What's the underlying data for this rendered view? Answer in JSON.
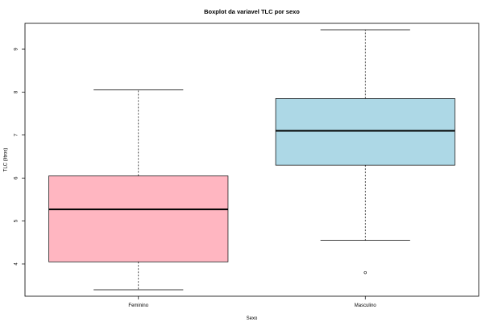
{
  "chart_data": {
    "type": "boxplot",
    "title": "Boxplot da variavel TLC por sexo",
    "xlabel": "Sexo",
    "ylabel": "TLC (litros)",
    "ylim": [
      3.25,
      9.6
    ],
    "yticks": [
      "4",
      "5",
      "6",
      "7",
      "8",
      "9"
    ],
    "categories": [
      "Feminino",
      "Masculino"
    ],
    "series": [
      {
        "category": "Feminino",
        "min": 3.4,
        "q1": 4.05,
        "median": 5.27,
        "q3": 6.05,
        "max": 8.05,
        "outliers": [],
        "color": "#FFB6C1"
      },
      {
        "category": "Masculino",
        "min": 4.55,
        "q1": 6.3,
        "median": 7.1,
        "q3": 7.85,
        "max": 9.45,
        "outliers": [
          3.8
        ],
        "color": "#ADD8E6"
      }
    ],
    "grid": false,
    "legend": "none"
  }
}
